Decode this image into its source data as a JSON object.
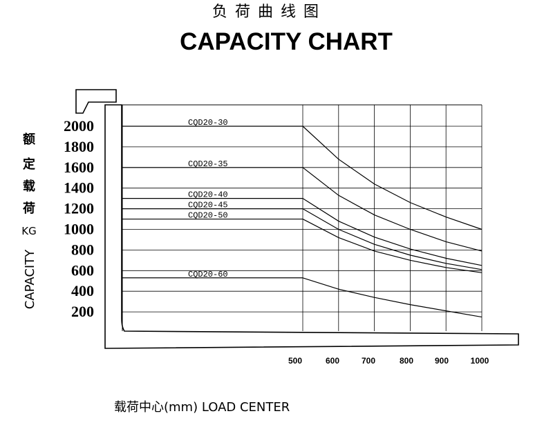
{
  "chart_data": {
    "type": "line",
    "title_cn": "负  荷  曲  线  图",
    "title": "CAPACITY CHART",
    "ylabel_cn": [
      "额",
      "定",
      "载",
      "荷"
    ],
    "ylabel_unit": "KG",
    "ylabel": "CAPACITY",
    "xlabel": "载荷中心(mm)  LOAD CENTER",
    "x_ticks": [
      500,
      600,
      700,
      800,
      900,
      1000
    ],
    "y_ticks": [
      200,
      400,
      600,
      800,
      1000,
      1200,
      1400,
      1600,
      1800,
      2000
    ],
    "grid": true,
    "series": [
      {
        "name": "CQD20-30",
        "x": [
          500,
          600,
          700,
          800,
          900,
          1000
        ],
        "values": [
          2000,
          1680,
          1440,
          1260,
          1120,
          1000
        ]
      },
      {
        "name": "CQD20-35",
        "x": [
          500,
          600,
          700,
          800,
          900,
          1000
        ],
        "values": [
          1600,
          1330,
          1140,
          1000,
          880,
          790
        ]
      },
      {
        "name": "CQD20-40",
        "x": [
          500,
          600,
          700,
          800,
          900,
          1000
        ],
        "values": [
          1300,
          1080,
          925,
          810,
          720,
          650
        ]
      },
      {
        "name": "CQD20-45",
        "x": [
          500,
          600,
          700,
          800,
          900,
          1000
        ],
        "values": [
          1200,
          1000,
          855,
          750,
          670,
          610
        ]
      },
      {
        "name": "CQD20-50",
        "x": [
          500,
          600,
          700,
          800,
          900,
          1000
        ],
        "values": [
          1100,
          920,
          790,
          700,
          630,
          580
        ]
      },
      {
        "name": "CQD20-60",
        "x": [
          500,
          600,
          700,
          800,
          900,
          1000
        ],
        "values": [
          530,
          420,
          340,
          270,
          210,
          150
        ]
      }
    ]
  }
}
